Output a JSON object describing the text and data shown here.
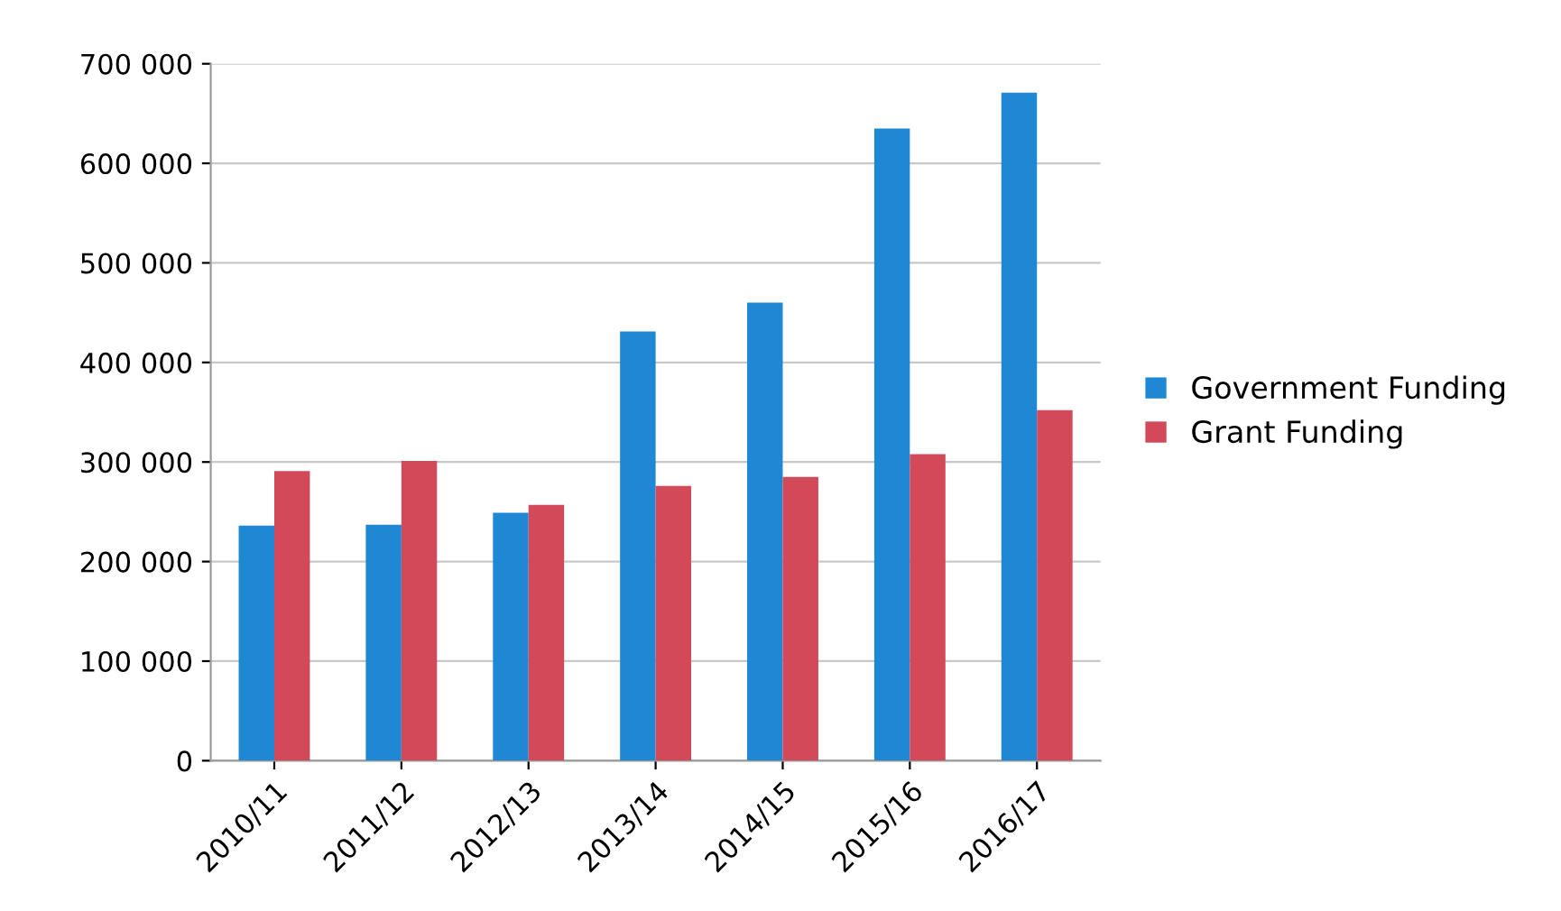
{
  "chart_data": {
    "type": "bar",
    "categories": [
      "2010/11",
      "2011/12",
      "2012/13",
      "2013/14",
      "2014/15",
      "2015/16",
      "2016/17"
    ],
    "series": [
      {
        "name": "Government Funding",
        "color": "#1f88d4",
        "values": [
          236000,
          237000,
          249000,
          431000,
          460000,
          635000,
          671000
        ]
      },
      {
        "name": "Grant Funding",
        "color": "#d2495a",
        "values": [
          291000,
          301000,
          257000,
          276000,
          285000,
          308000,
          352000
        ]
      }
    ],
    "ylim": [
      0,
      700000
    ],
    "yticks": [
      {
        "value": 0,
        "label": "0"
      },
      {
        "value": 100000,
        "label": "100 000"
      },
      {
        "value": 200000,
        "label": "200 000"
      },
      {
        "value": 300000,
        "label": "300 000"
      },
      {
        "value": 400000,
        "label": "400 000"
      },
      {
        "value": 500000,
        "label": "500 000"
      },
      {
        "value": 600000,
        "label": "600 000"
      },
      {
        "value": 700000,
        "label": "700 000"
      }
    ],
    "grid": "y",
    "legend": "right"
  }
}
